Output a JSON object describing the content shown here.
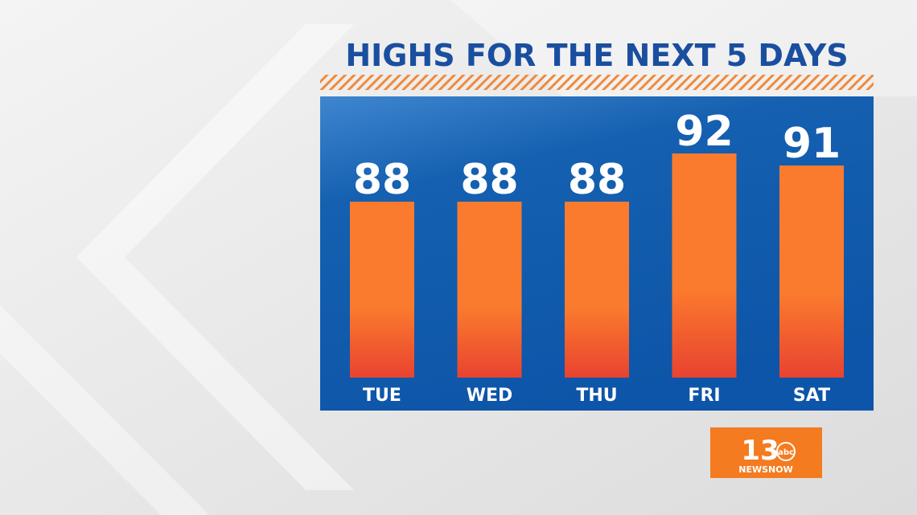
{
  "chart_data": {
    "type": "bar",
    "title": "HIGHS FOR THE NEXT 5 DAYS",
    "categories": [
      "TUE",
      "WED",
      "THU",
      "FRI",
      "SAT"
    ],
    "values": [
      88,
      88,
      88,
      92,
      91
    ],
    "color": "#fb7b2e"
  },
  "logo": {
    "number": "13",
    "network": "abc",
    "brand": "NEWSNOW"
  }
}
